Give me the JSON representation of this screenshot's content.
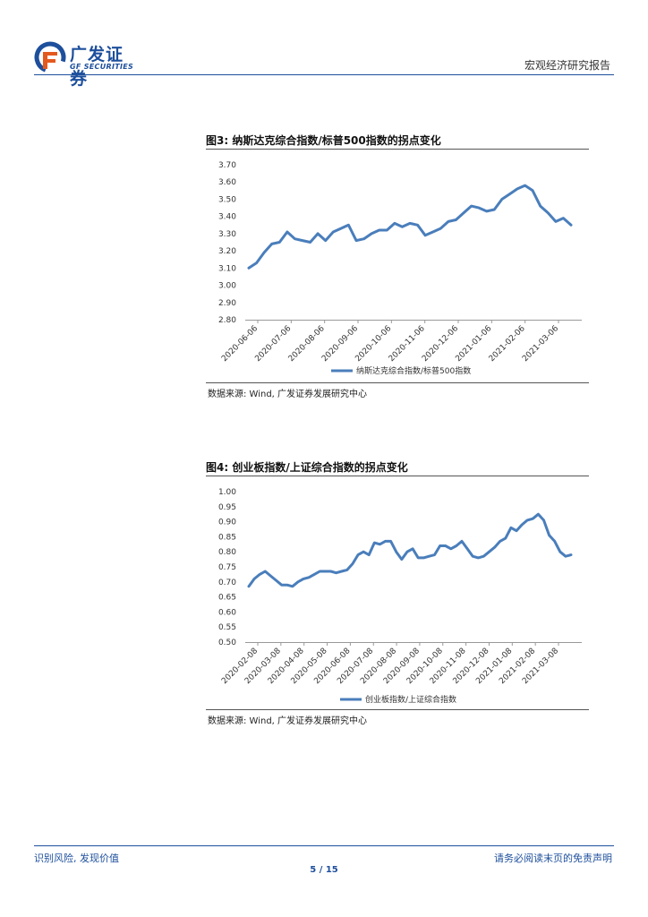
{
  "header": {
    "logo_cn": "广发证券",
    "logo_en": "GF SECURITIES",
    "report_type": "宏观经济研究报告",
    "brand_color": "#1d4f9c",
    "accent_color": "#e35a1f"
  },
  "figures": [
    {
      "title": "图3:  纳斯达克综合指数/标普500指数的拐点变化",
      "source": "数据来源:  Wind, 广发证券发展研究中心"
    },
    {
      "title": "图4:  创业板指数/上证综合指数的拐点变化",
      "source": "数据来源:  Wind, 广发证券发展研究中心"
    }
  ],
  "chart_data": [
    {
      "type": "line",
      "title": "",
      "xlabel": "",
      "ylabel": "",
      "ylim": [
        2.8,
        3.7
      ],
      "yticks": [
        "2.80",
        "2.90",
        "3.00",
        "3.10",
        "3.20",
        "3.30",
        "3.40",
        "3.50",
        "3.60",
        "3.70"
      ],
      "x_tick_labels": [
        "2020-06-06",
        "2020-07-06",
        "2020-08-06",
        "2020-09-06",
        "2020-10-06",
        "2020-11-06",
        "2020-12-06",
        "2021-01-06",
        "2021-02-06",
        "2021-03-06"
      ],
      "legend_position": "bottom",
      "line_color": "#4a7ebb",
      "series": [
        {
          "name": "纳斯达克综合指数/标普500指数",
          "values": [
            3.1,
            3.13,
            3.19,
            3.24,
            3.25,
            3.31,
            3.27,
            3.26,
            3.25,
            3.3,
            3.26,
            3.31,
            3.33,
            3.35,
            3.26,
            3.27,
            3.3,
            3.32,
            3.32,
            3.36,
            3.34,
            3.36,
            3.35,
            3.29,
            3.31,
            3.33,
            3.37,
            3.38,
            3.42,
            3.46,
            3.45,
            3.43,
            3.44,
            3.5,
            3.53,
            3.56,
            3.58,
            3.55,
            3.46,
            3.42,
            3.37,
            3.39,
            3.35
          ]
        }
      ]
    },
    {
      "type": "line",
      "title": "",
      "xlabel": "",
      "ylabel": "",
      "ylim": [
        0.5,
        1.0
      ],
      "yticks": [
        "0.50",
        "0.55",
        "0.60",
        "0.65",
        "0.70",
        "0.75",
        "0.80",
        "0.85",
        "0.90",
        "0.95",
        "1.00"
      ],
      "x_tick_labels": [
        "2020-02-08",
        "2020-03-08",
        "2020-04-08",
        "2020-05-08",
        "2020-06-08",
        "2020-07-08",
        "2020-08-08",
        "2020-09-08",
        "2020-10-08",
        "2020-11-08",
        "2020-12-08",
        "2021-01-08",
        "2021-02-08",
        "2021-03-08"
      ],
      "legend_position": "bottom",
      "line_color": "#4a7ebb",
      "series": [
        {
          "name": "创业板指数/上证综合指数",
          "values": [
            0.685,
            0.71,
            0.725,
            0.735,
            0.72,
            0.705,
            0.69,
            0.69,
            0.685,
            0.7,
            0.71,
            0.715,
            0.725,
            0.735,
            0.735,
            0.735,
            0.73,
            0.735,
            0.74,
            0.76,
            0.79,
            0.8,
            0.79,
            0.83,
            0.825,
            0.835,
            0.835,
            0.8,
            0.775,
            0.8,
            0.81,
            0.78,
            0.78,
            0.785,
            0.79,
            0.82,
            0.82,
            0.81,
            0.82,
            0.835,
            0.81,
            0.785,
            0.78,
            0.785,
            0.8,
            0.815,
            0.835,
            0.845,
            0.88,
            0.87,
            0.89,
            0.905,
            0.91,
            0.925,
            0.905,
            0.855,
            0.835,
            0.8,
            0.785,
            0.79
          ]
        }
      ]
    }
  ],
  "footer": {
    "left": "识别风险, 发现价值",
    "right": "请务必阅读末页的免责声明",
    "page": "5 / 15"
  }
}
